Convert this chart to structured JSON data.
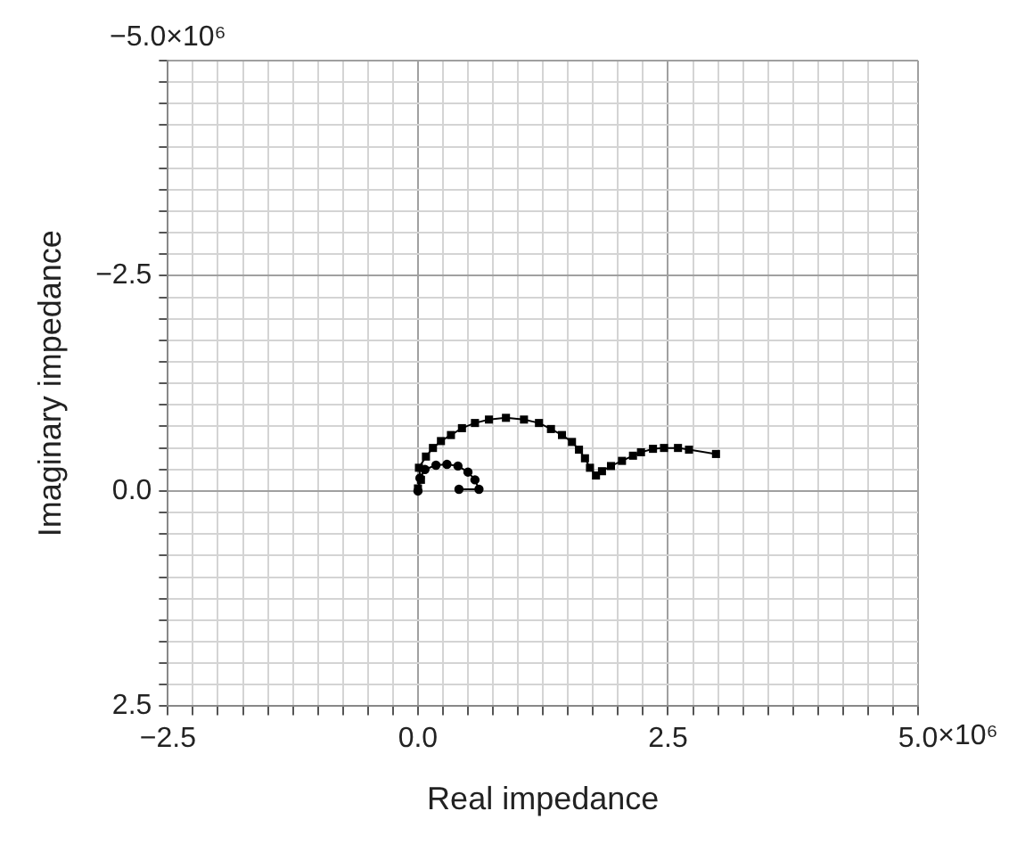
{
  "chart_data": {
    "type": "line",
    "xlabel": "Real impedance",
    "ylabel": "Imaginary impedance",
    "xlim": [
      -2.5,
      5.0
    ],
    "ylim": [
      2.5,
      -5.0
    ],
    "xticks": [
      {
        "value": -2.5,
        "label": "−2.5"
      },
      {
        "value": -2.25,
        "label": null
      },
      {
        "value": -2.0,
        "label": null
      },
      {
        "value": -1.75,
        "label": null
      },
      {
        "value": -1.5,
        "label": null
      },
      {
        "value": -1.25,
        "label": null
      },
      {
        "value": -1.0,
        "label": null
      },
      {
        "value": -0.75,
        "label": null
      },
      {
        "value": -0.5,
        "label": null
      },
      {
        "value": -0.25,
        "label": null
      },
      {
        "value": 0,
        "label": "0.0"
      },
      {
        "value": 0.25,
        "label": null
      },
      {
        "value": 0.5,
        "label": null
      },
      {
        "value": 0.75,
        "label": null
      },
      {
        "value": 1.0,
        "label": null
      },
      {
        "value": 1.25,
        "label": null
      },
      {
        "value": 1.5,
        "label": null
      },
      {
        "value": 1.75,
        "label": null
      },
      {
        "value": 2.0,
        "label": null
      },
      {
        "value": 2.25,
        "label": null
      },
      {
        "value": 2.5,
        "label": "2.5"
      },
      {
        "value": 2.75,
        "label": null
      },
      {
        "value": 3.0,
        "label": null
      },
      {
        "value": 3.25,
        "label": null
      },
      {
        "value": 3.5,
        "label": null
      },
      {
        "value": 3.75,
        "label": null
      },
      {
        "value": 4.0,
        "label": null
      },
      {
        "value": 4.25,
        "label": null
      },
      {
        "value": 4.5,
        "label": null
      },
      {
        "value": 4.75,
        "label": null
      },
      {
        "value": 5.0,
        "label": "5.0"
      }
    ],
    "yticks": [
      {
        "value": -5.0,
        "label": "−5.0"
      },
      {
        "value": -4.75,
        "label": null
      },
      {
        "value": -4.5,
        "label": null
      },
      {
        "value": -4.25,
        "label": null
      },
      {
        "value": -4.0,
        "label": null
      },
      {
        "value": -3.75,
        "label": null
      },
      {
        "value": -3.5,
        "label": null
      },
      {
        "value": -3.25,
        "label": null
      },
      {
        "value": -3.0,
        "label": null
      },
      {
        "value": -2.75,
        "label": null
      },
      {
        "value": -2.5,
        "label": "−2.5"
      },
      {
        "value": -2.25,
        "label": null
      },
      {
        "value": -2.0,
        "label": null
      },
      {
        "value": -1.75,
        "label": null
      },
      {
        "value": -1.5,
        "label": null
      },
      {
        "value": -1.25,
        "label": null
      },
      {
        "value": -1.0,
        "label": null
      },
      {
        "value": -0.75,
        "label": null
      },
      {
        "value": -0.5,
        "label": null
      },
      {
        "value": -0.25,
        "label": null
      },
      {
        "value": 0,
        "label": "0.0"
      },
      {
        "value": 0.25,
        "label": null
      },
      {
        "value": 0.5,
        "label": null
      },
      {
        "value": 0.75,
        "label": null
      },
      {
        "value": 1.0,
        "label": null
      },
      {
        "value": 1.25,
        "label": null
      },
      {
        "value": 1.5,
        "label": null
      },
      {
        "value": 1.75,
        "label": null
      },
      {
        "value": 2.0,
        "label": null
      },
      {
        "value": 2.25,
        "label": null
      },
      {
        "value": 2.5,
        "label": "2.5"
      }
    ],
    "annotations": [
      "×10⁶",
      "×10⁶"
    ],
    "grid": true,
    "legend": false,
    "line_style": "solid",
    "series": [
      {
        "color": "#000000",
        "marker": "square",
        "x": [
          0,
          0.03,
          0.01,
          0.08,
          0.15,
          0.23,
          0.33,
          0.44,
          0.57,
          0.71,
          0.88,
          1.06,
          1.21,
          1.33,
          1.44,
          1.54,
          1.61,
          1.67,
          1.72,
          1.78,
          1.84,
          1.93,
          2.04,
          2.15,
          2.23,
          2.35,
          2.46,
          2.6,
          2.71,
          2.98
        ],
        "values": [
          -0.03,
          -0.13,
          -0.27,
          -0.4,
          -0.5,
          -0.58,
          -0.65,
          -0.73,
          -0.79,
          -0.83,
          -0.85,
          -0.83,
          -0.79,
          -0.72,
          -0.65,
          -0.57,
          -0.48,
          -0.38,
          -0.27,
          -0.18,
          -0.23,
          -0.29,
          -0.35,
          -0.41,
          -0.45,
          -0.49,
          -0.5,
          -0.5,
          -0.48,
          -0.43
        ]
      },
      {
        "color": "#000000",
        "marker": "circle",
        "x": [
          0,
          0.02,
          0.07,
          0.18,
          0.29,
          0.4,
          0.5,
          0.57,
          0.61,
          0.41
        ],
        "values": [
          0,
          -0.15,
          -0.25,
          -0.3,
          -0.31,
          -0.29,
          -0.22,
          -0.13,
          -0.02,
          -0.02
        ]
      }
    ]
  }
}
